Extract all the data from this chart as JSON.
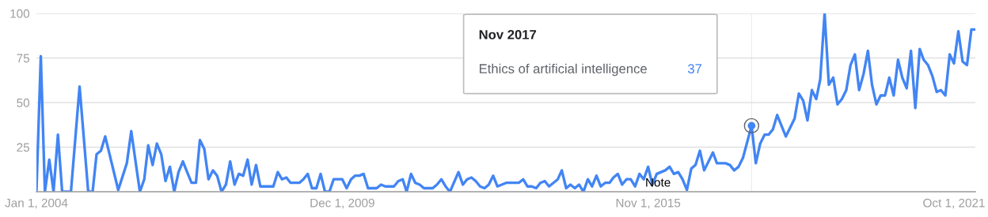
{
  "chart_data": {
    "type": "line",
    "x": [
      "2004-01",
      "2004-02",
      "2004-03",
      "2004-04",
      "2004-05",
      "2004-06",
      "2004-07",
      "2004-09",
      "2004-11",
      "2005-01",
      "2005-02",
      "2005-03",
      "2005-04",
      "2005-05",
      "2005-08",
      "2005-10",
      "2005-11",
      "2006-01",
      "2006-02",
      "2006-03",
      "2006-04",
      "2006-05",
      "2006-06",
      "2006-07",
      "2006-08",
      "2006-09",
      "2006-10",
      "2006-11",
      "2006-12",
      "2007-01",
      "2007-02",
      "2007-03",
      "2007-04",
      "2007-05",
      "2007-06",
      "2007-07",
      "2007-08",
      "2007-09",
      "2007-10",
      "2007-11",
      "2007-12",
      "2008-01",
      "2008-02",
      "2008-03",
      "2008-04",
      "2008-05",
      "2008-08",
      "2008-09",
      "2008-10",
      "2008-11",
      "2008-12",
      "2009-02",
      "2009-03",
      "2009-04",
      "2009-05",
      "2009-06",
      "2009-07",
      "2009-08",
      "2009-09",
      "2009-10",
      "2009-12",
      "2010-01",
      "2010-02",
      "2010-03",
      "2010-04",
      "2010-05",
      "2010-06",
      "2010-08",
      "2010-09",
      "2010-10",
      "2010-12",
      "2011-01",
      "2011-02",
      "2011-03",
      "2011-04",
      "2011-05",
      "2011-06",
      "2011-07",
      "2011-09",
      "2011-10",
      "2011-11",
      "2011-12",
      "2012-01",
      "2012-03",
      "2012-04",
      "2012-05",
      "2012-06",
      "2012-07",
      "2012-08",
      "2012-09",
      "2012-10",
      "2012-11",
      "2012-12",
      "2013-02",
      "2013-05",
      "2013-06",
      "2013-07",
      "2013-08",
      "2013-09",
      "2013-10",
      "2013-11",
      "2013-12",
      "2014-01",
      "2014-02",
      "2014-03",
      "2014-04",
      "2014-05",
      "2014-06",
      "2014-07",
      "2014-08",
      "2014-09",
      "2014-10",
      "2014-11",
      "2014-12",
      "2015-01",
      "2015-02",
      "2015-03",
      "2015-04",
      "2015-05",
      "2015-06",
      "2015-07",
      "2015-08",
      "2015-09",
      "2015-10",
      "2015-11",
      "2015-12",
      "2016-01",
      "2016-03",
      "2016-04",
      "2016-05",
      "2016-06",
      "2016-07",
      "2016-08",
      "2016-09",
      "2016-10",
      "2016-11",
      "2016-12",
      "2017-02",
      "2017-03",
      "2017-05",
      "2017-06",
      "2017-07",
      "2017-08",
      "2017-09",
      "2017-11",
      "2017-12",
      "2018-01",
      "2018-02",
      "2018-03",
      "2018-04",
      "2018-05",
      "2018-07",
      "2018-09",
      "2018-10",
      "2018-11",
      "2018-12",
      "2019-01",
      "2019-02",
      "2019-03",
      "2019-04",
      "2019-05",
      "2019-06",
      "2019-07",
      "2019-08",
      "2019-09",
      "2019-10",
      "2019-11",
      "2019-12",
      "2020-01",
      "2020-02",
      "2020-03",
      "2020-04",
      "2020-05",
      "2020-06",
      "2020-07",
      "2020-08",
      "2020-09",
      "2020-10",
      "2020-11",
      "2020-12",
      "2021-01",
      "2021-02",
      "2021-03",
      "2021-04",
      "2021-05",
      "2021-06",
      "2021-07",
      "2021-08",
      "2021-09",
      "2021-10",
      "2021-11",
      "2021-12",
      "2022-01",
      "2022-02",
      "2022-03"
    ],
    "series": [
      {
        "name": "Ethics of artificial intelligence",
        "color": "#4285f4",
        "values": [
          0,
          76,
          0,
          18,
          0,
          32,
          0,
          0,
          59,
          0,
          0,
          21,
          23,
          31,
          1,
          16,
          34,
          0,
          7,
          26,
          15,
          27,
          21,
          6,
          14,
          0,
          11,
          17,
          11,
          5,
          5,
          29,
          24,
          7,
          12,
          9,
          0,
          4,
          17,
          4,
          10,
          9,
          18,
          4,
          15,
          3,
          3,
          11,
          7,
          8,
          5,
          5,
          7,
          10,
          2,
          2,
          10,
          0,
          0,
          7,
          7,
          2,
          7,
          9,
          9,
          10,
          2,
          2,
          4,
          3,
          3,
          6,
          7,
          0,
          10,
          5,
          4,
          2,
          2,
          4,
          7,
          3,
          0,
          11,
          4,
          7,
          8,
          6,
          3,
          2,
          4,
          9,
          3,
          5,
          5,
          7,
          3,
          3,
          2,
          5,
          6,
          3,
          5,
          7,
          12,
          2,
          4,
          2,
          4,
          0,
          7,
          3,
          9,
          3,
          5,
          5,
          8,
          10,
          4,
          7,
          7,
          3,
          10,
          7,
          14,
          4,
          10,
          12,
          14,
          10,
          11,
          7,
          1,
          13,
          15,
          23,
          12,
          22,
          16,
          16,
          15,
          12,
          14,
          19,
          37,
          16,
          27,
          32,
          32,
          35,
          43,
          31,
          41,
          55,
          51,
          40,
          57,
          52,
          63,
          100,
          60,
          64,
          49,
          52,
          57,
          71,
          77,
          57,
          66,
          79,
          60,
          49,
          54,
          54,
          64,
          54,
          74,
          64,
          58,
          79,
          47,
          80,
          74,
          71,
          65,
          56,
          57,
          54,
          77,
          72,
          90,
          73,
          71,
          91,
          91
        ]
      }
    ],
    "xlim": [
      "2004-01",
      "2022-03"
    ],
    "xticks": [
      {
        "value": "2004-01-01",
        "label": "Jan 1, 2004"
      },
      {
        "value": "2009-12-01",
        "label": "Dec 1, 2009"
      },
      {
        "value": "2015-11-01",
        "label": "Nov 1, 2015"
      },
      {
        "value": "2021-10-01",
        "label": "Oct 1, 2021"
      }
    ],
    "ylim": [
      0,
      100
    ],
    "yticks": [
      {
        "value": 0,
        "label": null
      },
      25,
      50,
      75,
      100
    ],
    "grid": "y",
    "legend": false,
    "ref_lines": [
      {
        "axis": "x",
        "value": "2017-11",
        "color": "#eeeeee"
      }
    ],
    "annotations": [
      "Nov 2017",
      "37",
      "Note"
    ]
  }
}
